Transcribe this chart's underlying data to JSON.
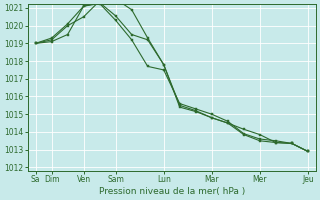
{
  "background_color": "#c8eaea",
  "grid_color": "#b0d8d8",
  "line_color": "#2d6a2d",
  "marker_color": "#2d6a2d",
  "ylabel_min": 1012,
  "ylabel_max": 1021,
  "xlabel": "Pression niveau de la mer( hPa )",
  "x_labels": [
    "Sa",
    "Dim",
    "Ven",
    "Sam",
    "Lun",
    "Mar",
    "Mer",
    "Jeu"
  ],
  "x_tick_positions": [
    0,
    1,
    3,
    5,
    8,
    11,
    14,
    17
  ],
  "series1": [
    1019.0,
    1019.1,
    1019.5,
    1021.1,
    1021.25,
    1020.3,
    1019.2,
    1017.7,
    1017.5,
    1015.6,
    1015.3,
    1015.0,
    1014.6,
    1013.9,
    1013.6,
    1013.5,
    1013.35,
    1012.9
  ],
  "series2": [
    1019.0,
    1019.3,
    1020.1,
    1021.1,
    1021.3,
    1020.55,
    1019.5,
    1019.2,
    1017.8,
    1015.4,
    1015.15,
    1014.8,
    1014.5,
    1014.15,
    1013.85,
    1013.4,
    1013.35,
    1012.9
  ],
  "series3": [
    1019.0,
    1019.2,
    1020.0,
    1020.5,
    1021.4,
    1021.5,
    1020.9,
    1019.3,
    1017.8,
    1015.5,
    1015.2,
    1014.8,
    1014.5,
    1013.85,
    1013.5,
    1013.4,
    1013.35,
    1012.9
  ],
  "n_points": 18,
  "marker_positions1": [
    0,
    1,
    2,
    3,
    4,
    5,
    6,
    7,
    8,
    9,
    10,
    11,
    12,
    13,
    14,
    15,
    16,
    17
  ],
  "marker_positions2": [
    0,
    1,
    2,
    3,
    4,
    5,
    6,
    7,
    8,
    9,
    10,
    11,
    12,
    13,
    14,
    15,
    16,
    17
  ],
  "marker_positions3": [
    0,
    1,
    2,
    3,
    4,
    5,
    6,
    7,
    8,
    9,
    10,
    11,
    12,
    13,
    14,
    15,
    16,
    17
  ]
}
